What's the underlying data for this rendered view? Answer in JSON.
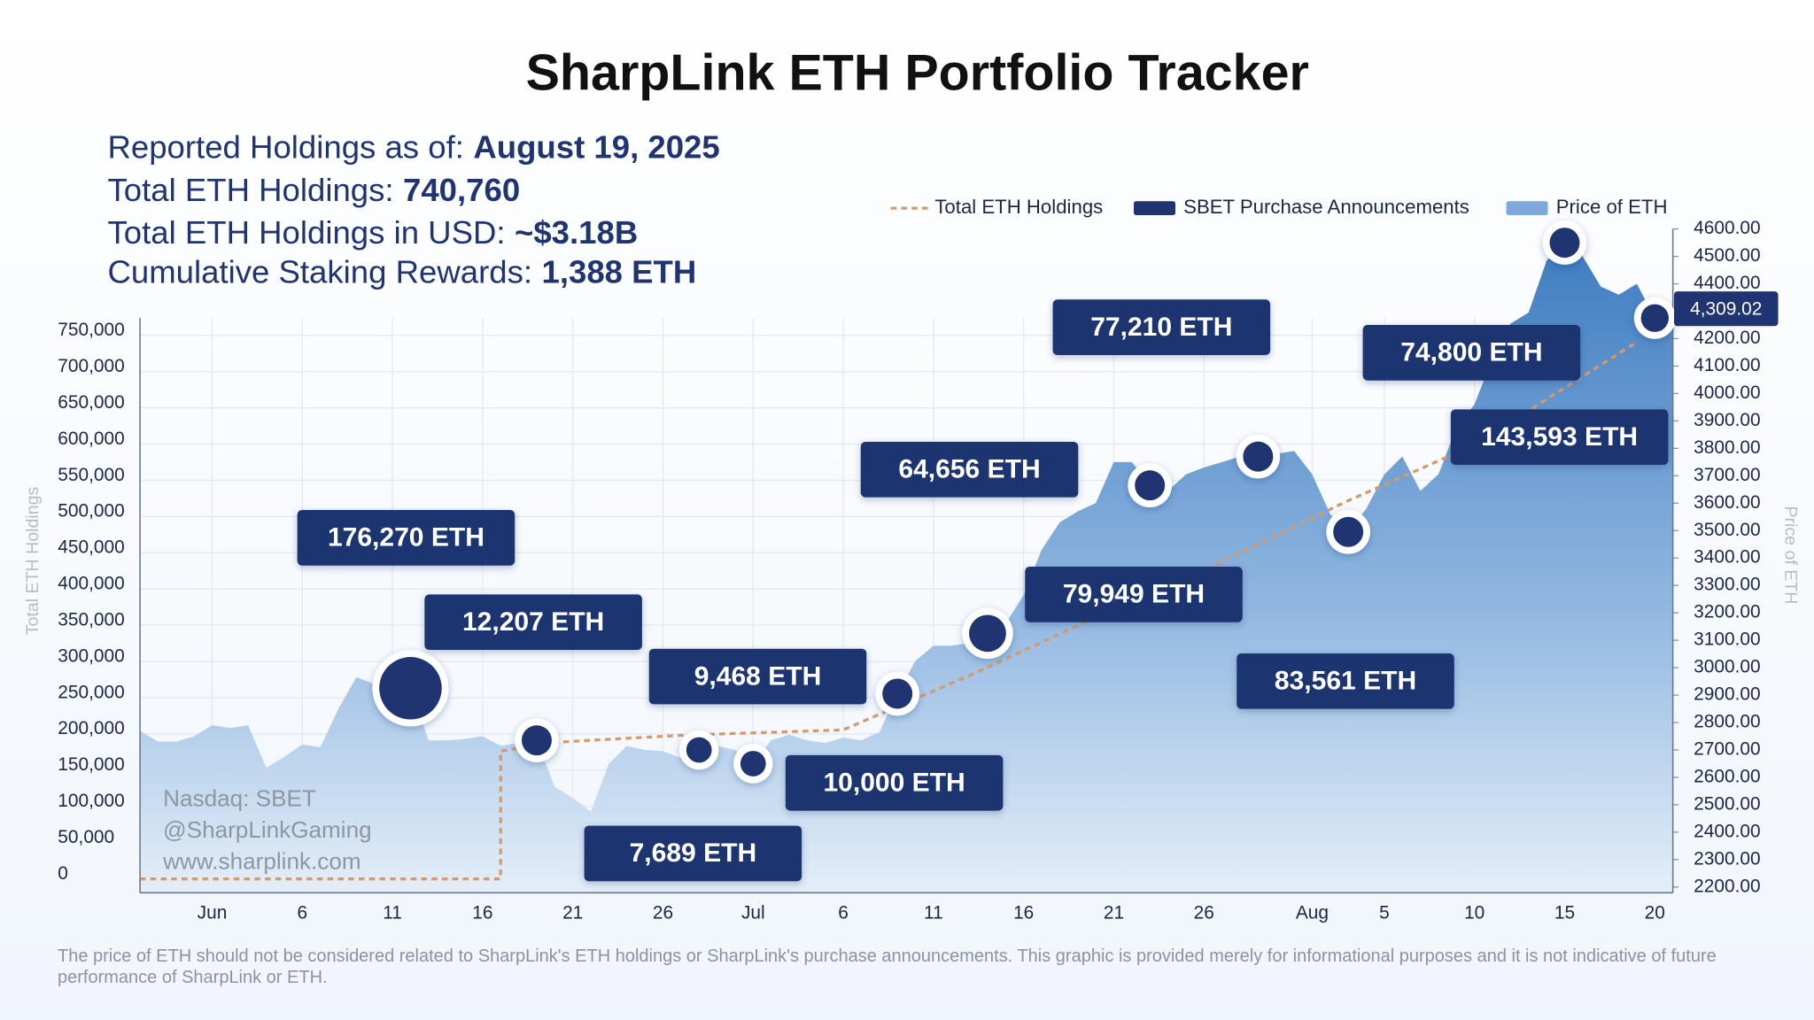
{
  "chart_data": {
    "type": "combo",
    "title": "SharpLink ETH Portfolio Tracker",
    "info": [
      {
        "label": "Reported Holdings as of:",
        "value": "August 19, 2025"
      },
      {
        "label": "Total ETH Holdings:",
        "value": "740,760"
      },
      {
        "label": "Total ETH Holdings in USD:",
        "value": "~$3.18B"
      },
      {
        "label": "Cumulative Staking Rewards:",
        "value": "1,388 ETH"
      }
    ],
    "y_label": "Total ETH Holdings",
    "y2_label": "Price of ETH",
    "watermark": [
      "Nasdaq: SBET",
      "@SharpLinkGaming",
      "www.sharplink.com"
    ],
    "footnote": "The price of ETH should not be considered related to SharpLink's ETH holdings or SharpLink's purchase announcements. This graphic is provided merely for informational purposes and it is not indicative of future performance of SharpLink or ETH.",
    "xlim": [
      "05-28",
      "08-21"
    ],
    "xticks": [
      {
        "value": "06-01",
        "label": "Jun"
      },
      {
        "value": "06-06",
        "label": "6"
      },
      {
        "value": "06-11",
        "label": "11"
      },
      {
        "value": "06-16",
        "label": "16"
      },
      {
        "value": "06-21",
        "label": "21"
      },
      {
        "value": "06-26",
        "label": "26"
      },
      {
        "value": "07-01",
        "label": "Jul"
      },
      {
        "value": "07-06",
        "label": "6"
      },
      {
        "value": "07-11",
        "label": "11"
      },
      {
        "value": "07-16",
        "label": "16"
      },
      {
        "value": "07-21",
        "label": "21"
      },
      {
        "value": "07-26",
        "label": "26"
      },
      {
        "value": "08-01",
        "label": "Aug"
      },
      {
        "value": "08-05",
        "label": "5"
      },
      {
        "value": "08-10",
        "label": "10"
      },
      {
        "value": "08-15",
        "label": "15"
      },
      {
        "value": "08-20",
        "label": "20"
      }
    ],
    "ylim": [
      0,
      750000
    ],
    "yticks": [
      0,
      {
        "value": 50000,
        "label": "50,000"
      },
      {
        "value": 100000,
        "label": "100,000"
      },
      {
        "value": 150000,
        "label": "150,000"
      },
      {
        "value": 200000,
        "label": "200,000"
      },
      {
        "value": 250000,
        "label": "250,000"
      },
      {
        "value": 300000,
        "label": "300,000"
      },
      {
        "value": 350000,
        "label": "350,000"
      },
      {
        "value": 400000,
        "label": "400,000"
      },
      {
        "value": 450000,
        "label": "450,000"
      },
      {
        "value": 500000,
        "label": "500,000"
      },
      {
        "value": 550000,
        "label": "550,000"
      },
      {
        "value": 600000,
        "label": "600,000"
      },
      {
        "value": 650000,
        "label": "650,000"
      },
      {
        "value": 700000,
        "label": "700,000"
      },
      {
        "value": 750000,
        "label": "750,000"
      }
    ],
    "y2lim": [
      2200,
      4600
    ],
    "y2ticks": [
      {
        "value": 2200,
        "label": "2200.00"
      },
      {
        "value": 2300,
        "label": "2300.00"
      },
      {
        "value": 2400,
        "label": "2400.00"
      },
      {
        "value": 2500,
        "label": "2500.00"
      },
      {
        "value": 2600,
        "label": "2600.00"
      },
      {
        "value": 2700,
        "label": "2700.00"
      },
      {
        "value": 2800,
        "label": "2800.00"
      },
      {
        "value": 2900,
        "label": "2900.00"
      },
      {
        "value": 3000,
        "label": "3000.00"
      },
      {
        "value": 3100,
        "label": "3100.00"
      },
      {
        "value": 3200,
        "label": "3200.00"
      },
      {
        "value": 3300,
        "label": "3300.00"
      },
      {
        "value": 3400,
        "label": "3400.00"
      },
      {
        "value": 3500,
        "label": "3500.00"
      },
      {
        "value": 3600,
        "label": "3600.00"
      },
      {
        "value": 3700,
        "label": "3700.00"
      },
      {
        "value": 3800,
        "label": "3800.00"
      },
      {
        "value": 3900,
        "label": "3900.00"
      },
      {
        "value": 4000,
        "label": "4000.00"
      },
      {
        "value": 4100,
        "label": "4100.00"
      },
      {
        "value": 4200,
        "label": "4200.00"
      },
      {
        "value": 4300,
        "label": "4300.00"
      },
      {
        "value": 4400,
        "label": "4400.00"
      },
      {
        "value": 4500,
        "label": "4500.00"
      },
      {
        "value": 4600,
        "label": "4600.00"
      }
    ],
    "grid": true,
    "current_price": {
      "value": 4309.02,
      "label": "4,309.02"
    },
    "series": [
      {
        "name": "Total ETH Holdings",
        "type": "line",
        "axis": "y",
        "color": "#d39a6c",
        "x": [
          "05-28",
          "06-17",
          "06-17",
          "06-20",
          "06-27",
          "07-06",
          "07-13",
          "07-20",
          "07-27",
          "08-03",
          "08-10",
          "08-19"
        ],
        "values": [
          0,
          0,
          176270,
          188478,
          198167,
          205634,
          280706,
          360807,
          438190,
          521939,
          598800,
          740760
        ]
      },
      {
        "name": "SBET Purchase Announcements",
        "type": "scatter",
        "color": "#1f3470",
        "x": [
          "06-12",
          "06-19",
          "06-28",
          "07-01",
          "07-09",
          "07-14",
          "07-23",
          "07-29",
          "08-03",
          "08-15",
          "08-20"
        ],
        "values": [
          176270,
          12207,
          9468,
          7689,
          10000,
          64656,
          79949,
          77210,
          83561,
          74800,
          143593
        ],
        "value_labels": [
          "176,270 ETH",
          "12,207 ETH",
          "9,468 ETH",
          "7,689 ETH",
          "10,000 ETH",
          "64,656 ETH",
          "79,949 ETH",
          "77,210 ETH",
          "83,561 ETH",
          "74,800 ETH",
          "143,593 ETH"
        ]
      },
      {
        "name": "Price of ETH",
        "type": "area",
        "axis": "y2",
        "color": "#7fa8dd",
        "x": [
          "05-28",
          "05-29",
          "05-30",
          "05-31",
          "06-01",
          "06-02",
          "06-03",
          "06-04",
          "06-05",
          "06-06",
          "06-07",
          "06-08",
          "06-09",
          "06-10",
          "06-11",
          "06-12",
          "06-13",
          "06-14",
          "06-15",
          "06-16",
          "06-17",
          "06-18",
          "06-19",
          "06-20",
          "06-21",
          "06-22",
          "06-23",
          "06-24",
          "06-25",
          "06-26",
          "06-27",
          "06-28",
          "06-29",
          "06-30",
          "07-01",
          "07-02",
          "07-03",
          "07-04",
          "07-05",
          "07-06",
          "07-07",
          "07-08",
          "07-09",
          "07-10",
          "07-11",
          "07-12",
          "07-13",
          "07-14",
          "07-15",
          "07-16",
          "07-17",
          "07-18",
          "07-19",
          "07-20",
          "07-21",
          "07-22",
          "07-23",
          "07-24",
          "07-25",
          "07-26",
          "07-27",
          "07-28",
          "07-29",
          "07-30",
          "07-31",
          "08-01",
          "08-02",
          "08-03",
          "08-04",
          "08-05",
          "08-06",
          "08-07",
          "08-08",
          "08-09",
          "08-10",
          "08-11",
          "08-12",
          "08-13",
          "08-14",
          "08-15",
          "08-16",
          "08-17",
          "08-18",
          "08-19",
          "08-20",
          "08-21"
        ],
        "values": [
          2770,
          2730,
          2730,
          2750,
          2790,
          2780,
          2790,
          2635,
          2675,
          2720,
          2710,
          2850,
          2965,
          2940,
          2985,
          2925,
          2735,
          2735,
          2740,
          2750,
          2715,
          2725,
          2735,
          2565,
          2525,
          2475,
          2650,
          2715,
          2700,
          2695,
          2670,
          2700,
          2715,
          2700,
          2650,
          2735,
          2755,
          2735,
          2725,
          2745,
          2735,
          2765,
          2905,
          3025,
          3080,
          3080,
          3090,
          3125,
          3160,
          3265,
          3430,
          3530,
          3570,
          3600,
          3750,
          3750,
          3665,
          3645,
          3705,
          3730,
          3750,
          3770,
          3770,
          3780,
          3790,
          3705,
          3560,
          3495,
          3580,
          3705,
          3770,
          3645,
          3705,
          3875,
          3960,
          4130,
          4255,
          4295,
          4485,
          4550,
          4500,
          4390,
          4360,
          4400,
          4275,
          4255
        ]
      }
    ]
  }
}
